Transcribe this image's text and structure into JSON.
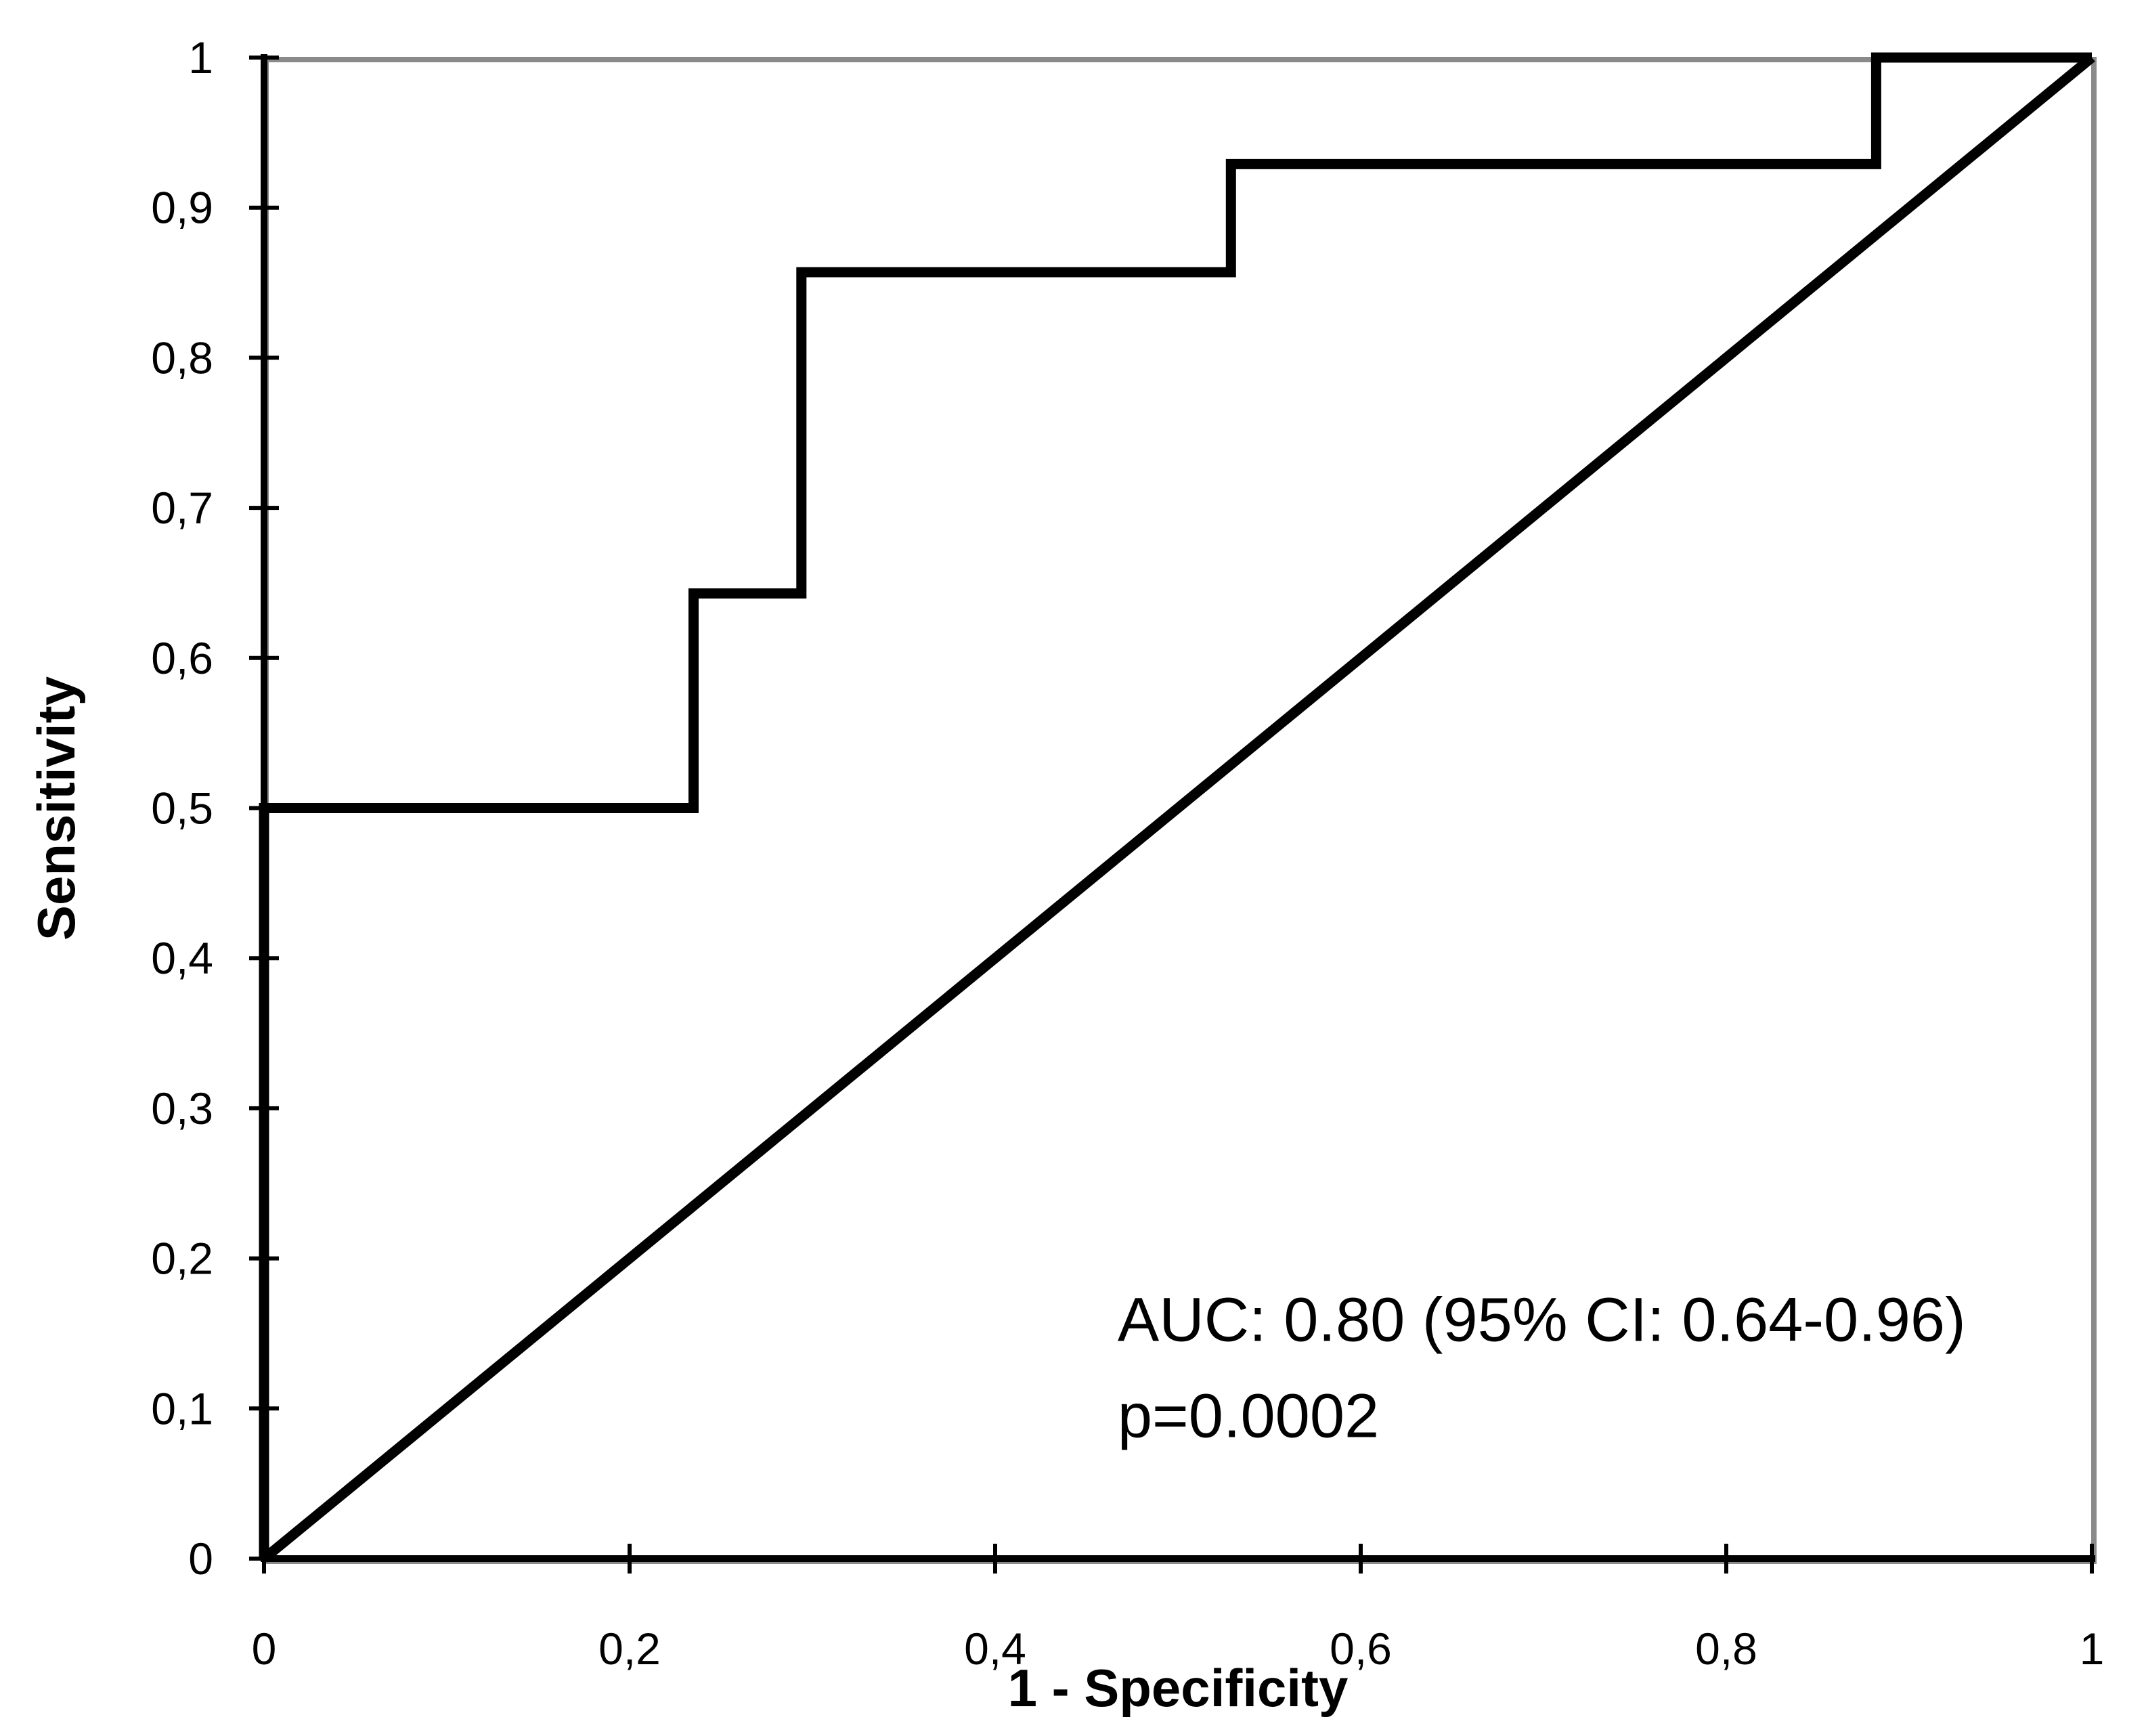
{
  "chart_data": {
    "type": "line",
    "subtype": "roc-step-curve",
    "title": "",
    "xlabel": "1 - Specificity",
    "ylabel": "Sensitivity",
    "xlim": [
      0,
      1
    ],
    "ylim": [
      0,
      1
    ],
    "grid": false,
    "legend_position": "none",
    "x_ticks": {
      "values": [
        0,
        0.2,
        0.4,
        0.6,
        0.8,
        1
      ],
      "labels": [
        "0",
        "0,2",
        "0,4",
        "0,6",
        "0,8",
        "1"
      ]
    },
    "y_ticks": {
      "values": [
        0,
        0.1,
        0.2,
        0.3,
        0.4,
        0.5,
        0.6,
        0.7,
        0.8,
        0.9,
        1
      ],
      "labels": [
        "0",
        "0,1",
        "0,2",
        "0,3",
        "0,4",
        "0,5",
        "0,6",
        "0,7",
        "0,8",
        "0,9",
        "1"
      ]
    },
    "series": [
      {
        "name": "ROC curve",
        "color": "#000000",
        "points": [
          [
            0,
            0
          ],
          [
            0,
            0.5
          ],
          [
            0.235,
            0.5
          ],
          [
            0.235,
            0.643
          ],
          [
            0.294,
            0.643
          ],
          [
            0.294,
            0.857
          ],
          [
            0.529,
            0.857
          ],
          [
            0.529,
            0.929
          ],
          [
            0.882,
            0.929
          ],
          [
            0.882,
            1
          ],
          [
            1,
            1
          ]
        ]
      },
      {
        "name": "Reference diagonal",
        "color": "#000000",
        "points": [
          [
            0,
            0
          ],
          [
            1,
            1
          ]
        ]
      }
    ],
    "statistics": {
      "auc": "0.80",
      "ci_95": "0.64-0.96",
      "p_value": "0.0002"
    },
    "annotations": [
      {
        "text": "AUC: 0.80 (95% CI: 0.64-0.96)",
        "x": 0.467,
        "y": 0.145
      },
      {
        "text": "p=0.0002",
        "x": 0.467,
        "y": 0.081
      }
    ]
  },
  "axes": {
    "x_title": "1 - Specificity",
    "y_title": "Sensitivity"
  },
  "annotation": {
    "line1": "AUC: 0.80 (95% CI: 0.64-0.96)",
    "line2": "p=0.0002"
  },
  "colors": {
    "curve": "#000000",
    "axis": "#000000",
    "frame": "#8a8a8a",
    "background": "#ffffff",
    "text": "#000000"
  }
}
